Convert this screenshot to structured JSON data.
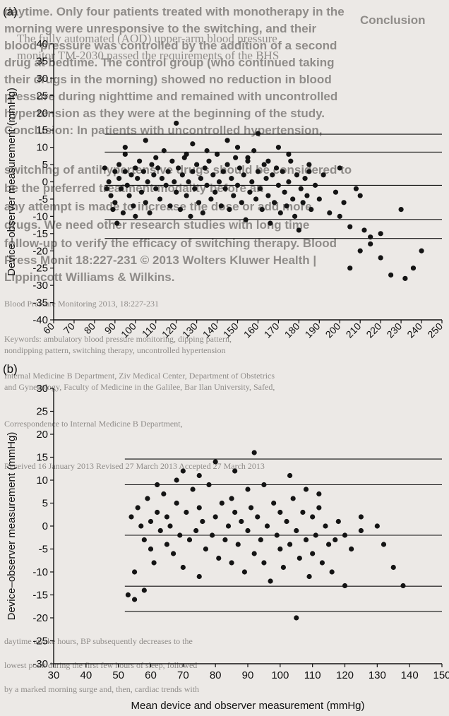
{
  "background_text": {
    "lines": [
      {
        "t": "daytime. Only four patients treated with monotherapy in the",
        "b": 1
      },
      {
        "t": "morning were unresponsive to the switching, and their",
        "b": 1
      },
      {
        "t": "blood pressure was controlled by the addition of a second",
        "b": 1
      },
      {
        "t": "drug at bedtime. The control group (who continued taking",
        "b": 1
      },
      {
        "t": "their drugs in the morning) showed no reduction in blood",
        "b": 1
      },
      {
        "t": "pressure during nighttime and remained with uncontrolled",
        "b": 1
      },
      {
        "t": "hypertension as they were at the beginning of the study.",
        "b": 1
      },
      {
        "t": "Conclusion: In patients with uncontrolled hypertension,",
        "b": 1
      },
      {
        "t": "switching of antihypertensive drugs should be considered to",
        "b": 1
      },
      {
        "t": "be the preferred treatment modality before an",
        "b": 1
      },
      {
        "t": "any attempt is made to increase the dose or add more",
        "b": 1
      },
      {
        "t": "drugs. We need other research studies with long time",
        "b": 1
      },
      {
        "t": "follow-up to verify the efficacy of switching therapy. Blood",
        "b": 1
      },
      {
        "t": "Press Monit 18:227-231 © 2013 Wolters Kluwer Health |",
        "b": 1
      },
      {
        "t": "Lippincott Williams & Wilkins.",
        "b": 1
      },
      {
        "t": "Blood Pressure Monitoring 2013, 18:227-231",
        "b": 0
      },
      {
        "t": "Keywords: ambulatory blood pressure monitoring, dipping pattern,",
        "b": 0
      },
      {
        "t": "nondipping pattern, switching therapy, uncontrolled hypertension",
        "b": 0
      },
      {
        "t": "Internal Medicine B Department, Ziv Medical Center, Department of Obstetrics",
        "b": 0
      },
      {
        "t": "and Gynecology, Faculty of Medicine in the Galilee, Bar Ilan University, Safed,",
        "b": 0
      },
      {
        "t": "Correspondence to Internal Medicine B Department,",
        "b": 0
      },
      {
        "t": "Received 16 January 2013 Revised 27 March 2013 Accepted 27 March 2013",
        "b": 0
      },
      {
        "t": "daytime awake hours, BP subsequently decreases to the",
        "b": 0
      },
      {
        "t": "lowest point during the first few hours of sleep, followed",
        "b": 0
      },
      {
        "t": "by a marked morning surge and, then, cardiac trends with",
        "b": 0
      }
    ],
    "header_fragment": "Conclusion",
    "header_fragment2": "The fully automated (AOD) upper-arm blood pressure",
    "header_fragment3": "monitor TM-2030 passed the requirements of the BHS"
  },
  "chart_data": [
    {
      "type": "scatter",
      "panel_label": "(a)",
      "xlabel": "",
      "ylabel": "Device–observer measurement (mmHg)",
      "xlim": [
        60,
        250
      ],
      "ylim": [
        -40,
        40
      ],
      "xticks": [
        60,
        70,
        80,
        90,
        100,
        110,
        120,
        130,
        140,
        150,
        160,
        170,
        180,
        190,
        200,
        210,
        220,
        230,
        240,
        250
      ],
      "yticks": [
        -40,
        -35,
        -30,
        -25,
        -20,
        -15,
        -10,
        -5,
        0,
        5,
        10,
        15,
        20,
        25,
        30,
        35,
        40
      ],
      "grid": false,
      "reference_lines": [
        {
          "y": 13.8,
          "x_start": 85
        },
        {
          "y": 8.6,
          "x_start": 85
        },
        {
          "y": -1.0,
          "x_start": 85
        },
        {
          "y": -10.9,
          "x_start": 85
        },
        {
          "y": -16.4,
          "x_start": 85
        }
      ],
      "points": [
        [
          85,
          4
        ],
        [
          86,
          -2
        ],
        [
          87,
          0
        ],
        [
          88,
          -4
        ],
        [
          89,
          -8
        ],
        [
          90,
          3
        ],
        [
          90,
          -6
        ],
        [
          91,
          -12
        ],
        [
          92,
          5
        ],
        [
          92,
          1
        ],
        [
          93,
          -2
        ],
        [
          94,
          -9
        ],
        [
          95,
          3
        ],
        [
          95,
          8
        ],
        [
          96,
          -1
        ],
        [
          97,
          -4
        ],
        [
          98,
          2
        ],
        [
          99,
          -7
        ],
        [
          100,
          4
        ],
        [
          100,
          -10
        ],
        [
          101,
          1
        ],
        [
          102,
          6
        ],
        [
          103,
          -3
        ],
        [
          104,
          3
        ],
        [
          105,
          -6
        ],
        [
          106,
          0
        ],
        [
          107,
          -9
        ],
        [
          108,
          5
        ],
        [
          109,
          2
        ],
        [
          110,
          -2
        ],
        [
          111,
          4
        ],
        [
          112,
          -5
        ],
        [
          113,
          1
        ],
        [
          114,
          9
        ],
        [
          115,
          -1
        ],
        [
          116,
          3
        ],
        [
          117,
          -7
        ],
        [
          118,
          6
        ],
        [
          119,
          0
        ],
        [
          120,
          -3
        ],
        [
          121,
          4
        ],
        [
          122,
          -8
        ],
        [
          123,
          2
        ],
        [
          124,
          7
        ],
        [
          125,
          -4
        ],
        [
          126,
          0
        ],
        [
          127,
          -10
        ],
        [
          128,
          3
        ],
        [
          129,
          -2
        ],
        [
          130,
          5
        ],
        [
          131,
          -6
        ],
        [
          132,
          1
        ],
        [
          133,
          -9
        ],
        [
          134,
          4
        ],
        [
          135,
          -1
        ],
        [
          136,
          6
        ],
        [
          137,
          -5
        ],
        [
          138,
          2
        ],
        [
          139,
          -3
        ],
        [
          140,
          8
        ],
        [
          141,
          0
        ],
        [
          142,
          -7
        ],
        [
          143,
          3
        ],
        [
          144,
          -2
        ],
        [
          145,
          5
        ],
        [
          146,
          -8
        ],
        [
          147,
          1
        ],
        [
          148,
          -4
        ],
        [
          149,
          7
        ],
        [
          150,
          -1
        ],
        [
          151,
          4
        ],
        [
          152,
          -6
        ],
        [
          153,
          2
        ],
        [
          154,
          -11
        ],
        [
          155,
          6
        ],
        [
          156,
          -3
        ],
        [
          157,
          0
        ],
        [
          158,
          9
        ],
        [
          159,
          -5
        ],
        [
          160,
          3
        ],
        [
          161,
          -2
        ],
        [
          162,
          -8
        ],
        [
          163,
          5
        ],
        [
          164,
          1
        ],
        [
          165,
          -4
        ],
        [
          166,
          -12
        ],
        [
          167,
          2
        ],
        [
          168,
          -6
        ],
        [
          169,
          4
        ],
        [
          170,
          -1
        ],
        [
          171,
          -9
        ],
        [
          172,
          3
        ],
        [
          173,
          -3
        ],
        [
          174,
          -7
        ],
        [
          175,
          0
        ],
        [
          176,
          6
        ],
        [
          177,
          -5
        ],
        [
          178,
          -10
        ],
        [
          179,
          2
        ],
        [
          180,
          -14
        ],
        [
          181,
          -2
        ],
        [
          182,
          -6
        ],
        [
          183,
          1
        ],
        [
          184,
          -4
        ],
        [
          185,
          3
        ],
        [
          186,
          -8
        ],
        [
          188,
          -1
        ],
        [
          190,
          -5
        ],
        [
          192,
          2
        ],
        [
          195,
          -9
        ],
        [
          198,
          -3
        ],
        [
          200,
          -10
        ],
        [
          202,
          -6
        ],
        [
          205,
          -13
        ],
        [
          208,
          -2
        ],
        [
          212,
          -14
        ],
        [
          215,
          -16
        ],
        [
          220,
          -22
        ],
        [
          225,
          -27
        ],
        [
          230,
          -8
        ],
        [
          232,
          -28
        ],
        [
          236,
          -25
        ],
        [
          240,
          -20
        ],
        [
          205,
          -25
        ],
        [
          210,
          -20
        ],
        [
          120,
          17
        ],
        [
          160,
          14
        ],
        [
          145,
          12
        ],
        [
          170,
          10
        ],
        [
          128,
          11
        ],
        [
          150,
          10
        ],
        [
          175,
          8
        ],
        [
          95,
          10
        ],
        [
          105,
          12
        ],
        [
          135,
          9
        ],
        [
          110,
          7
        ],
        [
          125,
          8
        ],
        [
          155,
          7
        ],
        [
          165,
          6
        ],
        [
          185,
          5
        ],
        [
          200,
          4
        ],
        [
          210,
          -4
        ],
        [
          215,
          -18
        ],
        [
          220,
          -15
        ]
      ]
    },
    {
      "type": "scatter",
      "panel_label": "(b)",
      "xlabel": "Mean device and observer measurement (mmHg)",
      "ylabel": "Device–observer measurement (mmHg)",
      "xlim": [
        30,
        150
      ],
      "ylim": [
        -30,
        30
      ],
      "xticks": [
        30,
        40,
        50,
        60,
        70,
        80,
        90,
        100,
        110,
        120,
        130,
        140,
        150
      ],
      "yticks": [
        -30,
        -25,
        -20,
        -15,
        -10,
        -5,
        0,
        5,
        10,
        15,
        20,
        25,
        30
      ],
      "grid": false,
      "reference_lines": [
        {
          "y": 14.6,
          "x_start": 52
        },
        {
          "y": 9.0,
          "x_start": 52
        },
        {
          "y": -2.0,
          "x_start": 52
        },
        {
          "y": -13.1,
          "x_start": 52
        },
        {
          "y": -18.6,
          "x_start": 52
        }
      ],
      "points": [
        [
          53,
          -15
        ],
        [
          54,
          2
        ],
        [
          55,
          -10
        ],
        [
          56,
          4
        ],
        [
          57,
          0
        ],
        [
          58,
          -3
        ],
        [
          59,
          6
        ],
        [
          60,
          -5
        ],
        [
          60,
          1
        ],
        [
          61,
          -8
        ],
        [
          62,
          3
        ],
        [
          63,
          -1
        ],
        [
          64,
          7
        ],
        [
          65,
          -4
        ],
        [
          65,
          2
        ],
        [
          66,
          0
        ],
        [
          67,
          -6
        ],
        [
          68,
          5
        ],
        [
          69,
          -2
        ],
        [
          70,
          12
        ],
        [
          70,
          -9
        ],
        [
          71,
          3
        ],
        [
          72,
          -3
        ],
        [
          73,
          8
        ],
        [
          74,
          -1
        ],
        [
          75,
          -11
        ],
        [
          75,
          4
        ],
        [
          76,
          1
        ],
        [
          77,
          -5
        ],
        [
          78,
          9
        ],
        [
          79,
          -2
        ],
        [
          80,
          14
        ],
        [
          80,
          2
        ],
        [
          81,
          -7
        ],
        [
          82,
          5
        ],
        [
          83,
          -3
        ],
        [
          84,
          0
        ],
        [
          85,
          -8
        ],
        [
          85,
          6
        ],
        [
          86,
          3
        ],
        [
          87,
          -4
        ],
        [
          88,
          1
        ],
        [
          89,
          -10
        ],
        [
          90,
          8
        ],
        [
          90,
          -1
        ],
        [
          91,
          4
        ],
        [
          92,
          -6
        ],
        [
          93,
          2
        ],
        [
          94,
          -3
        ],
        [
          95,
          9
        ],
        [
          95,
          -8
        ],
        [
          96,
          0
        ],
        [
          97,
          -12
        ],
        [
          98,
          5
        ],
        [
          99,
          -2
        ],
        [
          100,
          3
        ],
        [
          100,
          -5
        ],
        [
          101,
          -9
        ],
        [
          102,
          1
        ],
        [
          103,
          -4
        ],
        [
          104,
          6
        ],
        [
          105,
          -20
        ],
        [
          105,
          -1
        ],
        [
          106,
          -7
        ],
        [
          107,
          3
        ],
        [
          108,
          -3
        ],
        [
          109,
          -11
        ],
        [
          110,
          2
        ],
        [
          110,
          -6
        ],
        [
          111,
          -2
        ],
        [
          112,
          4
        ],
        [
          113,
          -8
        ],
        [
          114,
          0
        ],
        [
          115,
          -4
        ],
        [
          116,
          -10
        ],
        [
          117,
          -3
        ],
        [
          118,
          1
        ],
        [
          120,
          -13
        ],
        [
          122,
          -5
        ],
        [
          125,
          2
        ],
        [
          130,
          0
        ],
        [
          132,
          -4
        ],
        [
          135,
          -9
        ],
        [
          138,
          -13
        ],
        [
          55,
          -16
        ],
        [
          58,
          -14
        ],
        [
          62,
          9
        ],
        [
          68,
          10
        ],
        [
          75,
          11
        ],
        [
          86,
          12
        ],
        [
          92,
          16
        ],
        [
          103,
          11
        ],
        [
          108,
          8
        ],
        [
          112,
          7
        ],
        [
          120,
          -2
        ],
        [
          125,
          -1
        ]
      ]
    }
  ]
}
